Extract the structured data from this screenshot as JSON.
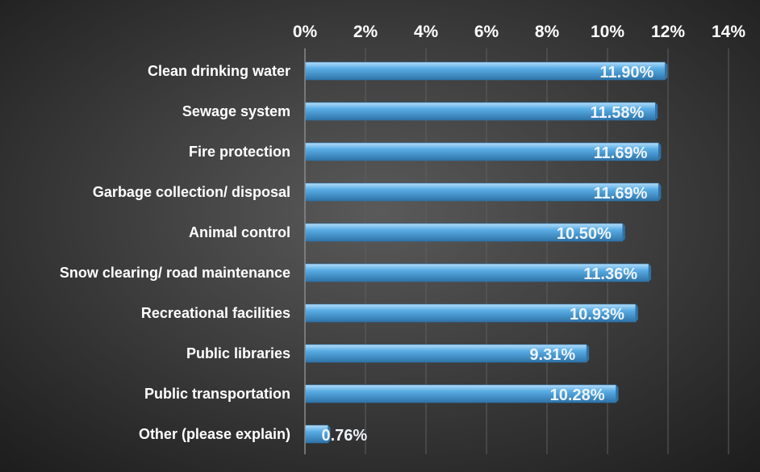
{
  "chart_data": {
    "type": "bar",
    "orientation": "horizontal",
    "categories": [
      "Clean drinking water",
      "Sewage system",
      "Fire protection",
      "Garbage collection/ disposal",
      "Animal control",
      "Snow clearing/ road maintenance",
      "Recreational facilities",
      "Public libraries",
      "Public transportation",
      "Other (please explain)"
    ],
    "values": [
      11.9,
      11.58,
      11.69,
      11.69,
      10.5,
      11.36,
      10.93,
      9.31,
      10.28,
      0.76
    ],
    "data_labels": [
      "11.90%",
      "11.58%",
      "11.69%",
      "11.69%",
      "10.50%",
      "11.36%",
      "10.93%",
      "9.31%",
      "10.28%",
      "0.76%"
    ],
    "x_ticks": [
      "0%",
      "2%",
      "4%",
      "6%",
      "8%",
      "10%",
      "12%",
      "14%"
    ],
    "xlim": [
      0,
      14
    ],
    "x_axis_position": "top",
    "grid": true,
    "title": "",
    "xlabel": "",
    "ylabel": "",
    "colors": {
      "bar": "#5aaee6",
      "bar_highlight": "#b4dcf8",
      "bar_shadow": "#2e73a8",
      "background_center": "#5a5a5a",
      "background_edge": "#1c1c1c",
      "gridline": "#5e5e5e",
      "text": "#ffffff"
    }
  }
}
